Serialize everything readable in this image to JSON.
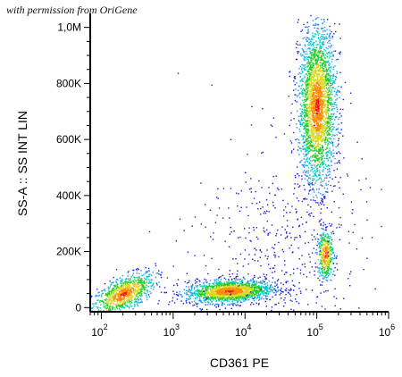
{
  "watermark": "with permission from OriGene",
  "chart_data": {
    "type": "scatter",
    "style": "density-colored flow cytometry dot plot",
    "xlabel": "CD361 PE",
    "ylabel": "SS-A :: SS INT LIN",
    "x_scale": "log",
    "xlim": [
      70,
      1000000
    ],
    "ylim": [
      -15000,
      1050000
    ],
    "x_ticks": [
      {
        "base": "10",
        "exp": "2",
        "value": 100
      },
      {
        "base": "10",
        "exp": "3",
        "value": 1000
      },
      {
        "base": "10",
        "exp": "4",
        "value": 10000
      },
      {
        "base": "10",
        "exp": "5",
        "value": 100000
      },
      {
        "base": "10",
        "exp": "6",
        "value": 1000000
      }
    ],
    "y_ticks": [
      {
        "label": "0",
        "value": 0
      },
      {
        "label": "200K",
        "value": 200000
      },
      {
        "label": "400K",
        "value": 400000
      },
      {
        "label": "600K",
        "value": 600000
      },
      {
        "label": "800K",
        "value": 800000
      },
      {
        "label": "1,0M",
        "value": 1000000
      }
    ],
    "density_colors": [
      "#1a1adb",
      "#1e90ff",
      "#00c8c8",
      "#22cc22",
      "#d8d820",
      "#ff8800",
      "#ee1111"
    ],
    "populations": [
      {
        "x_center": 200,
        "y_center": 50000,
        "x_spread_decades": 0.22,
        "y_spread": 30000,
        "tilt": 0.8,
        "count": 900
      },
      {
        "x_center": 6000,
        "y_center": 60000,
        "x_spread_decades": 0.3,
        "y_spread": 20000,
        "tilt": 0.2,
        "count": 1600
      },
      {
        "x_center": 100000,
        "y_center": 720000,
        "x_spread_decades": 0.13,
        "y_spread": 140000,
        "tilt": 0,
        "count": 2600
      },
      {
        "x_center": 130000,
        "y_center": 190000,
        "x_spread_decades": 0.06,
        "y_spread": 45000,
        "tilt": 0,
        "count": 400
      },
      {
        "x_center": 30000,
        "y_center": 200000,
        "x_spread_decades": 0.6,
        "y_spread": 200000,
        "tilt": 0,
        "count": 500
      }
    ]
  }
}
